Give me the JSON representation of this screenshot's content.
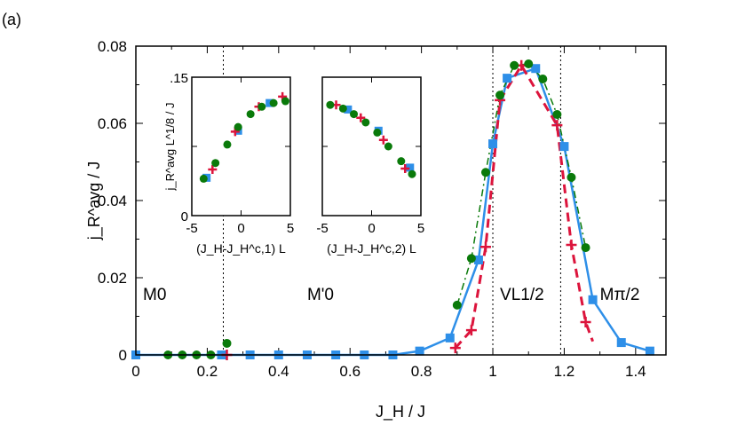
{
  "panel_label": "(a)",
  "chart_data": {
    "type": "scatter",
    "xlabel": "J_H / J",
    "ylabel": "j_R^avg / J",
    "xlim": [
      0,
      1.485
    ],
    "ylim": [
      0,
      0.08
    ],
    "xticks": [
      "0",
      "0.2",
      "0.4",
      "0.6",
      "0.8",
      "1",
      "1.2",
      "1.4"
    ],
    "yticks": [
      "0",
      "0.02",
      "0.04",
      "0.06",
      "0.08"
    ],
    "vlines": [
      0.245,
      1.0,
      1.19
    ],
    "region_labels": [
      {
        "text": "M0",
        "x": 0.02
      },
      {
        "text": "M'0",
        "x": 0.48
      },
      {
        "text": "VL1/2",
        "x": 1.02
      },
      {
        "text": "Mπ/2",
        "x": 1.3
      }
    ],
    "colors": {
      "blue": "#2e8fe8",
      "red": "#dc143c",
      "green": "#0a7a0a"
    },
    "series": [
      {
        "marker": "square",
        "color": "#2e8fe8",
        "line": "solid",
        "x": [
          0,
          0.24,
          0.32,
          0.4,
          0.48,
          0.56,
          0.64,
          0.72,
          0.795,
          0.88,
          0.96,
          1.0,
          1.04,
          1.12,
          1.2,
          1.28,
          1.36,
          1.44
        ],
        "y": [
          0,
          0,
          0,
          0,
          0,
          0,
          0,
          0,
          0.001,
          0.0044,
          0.0246,
          0.0547,
          0.0717,
          0.0742,
          0.054,
          0.0143,
          0.0032,
          0.001
        ]
      },
      {
        "marker": "plus",
        "color": "#dc143c",
        "line": "dashed",
        "x": [
          0.255,
          0.895,
          0.94,
          0.98,
          1.02,
          1.08,
          1.18,
          1.22,
          1.26
        ],
        "y": [
          0,
          0.0018,
          0.0064,
          0.028,
          0.066,
          0.075,
          0.0595,
          0.0285,
          0.0085
        ]
      },
      {
        "marker": "circle",
        "color": "#0a7a0a",
        "line": "dashdot",
        "x": [
          0.09,
          0.13,
          0.17,
          0.21,
          0.255,
          0.9,
          0.94,
          0.98,
          1.02,
          1.06,
          1.1,
          1.14,
          1.18,
          1.22,
          1.26
        ],
        "y": [
          0,
          0,
          0,
          0,
          0.003,
          0.0129,
          0.025,
          0.0473,
          0.0673,
          0.075,
          0.0754,
          0.0715,
          0.0623,
          0.046,
          0.0278
        ]
      }
    ],
    "insets": [
      {
        "xlabel": "(J_H-J_H^c,1) L",
        "ylabel": "j_R^avg L^1/8 / J",
        "xlim": [
          -5,
          5
        ],
        "ylim": [
          0,
          0.15
        ],
        "xticks": [
          "-5",
          "0",
          "5"
        ],
        "yticks": [
          "0",
          "0.15"
        ],
        "series": [
          {
            "marker": "square",
            "color": "#2e8fe8",
            "x": [
              -3.5,
              -0.3,
              2.9
            ],
            "y": [
              0.041,
              0.092,
              0.122
            ]
          },
          {
            "marker": "plus",
            "color": "#dc143c",
            "x": [
              -2.9,
              -0.6,
              1.8,
              4.2
            ],
            "y": [
              0.05,
              0.091,
              0.118,
              0.129
            ]
          },
          {
            "marker": "circle",
            "color": "#0a7a0a",
            "x": [
              -3.8,
              -2.6,
              -1.4,
              -0.3,
              0.96,
              2.1,
              3.3,
              4.5
            ],
            "y": [
              0.04,
              0.057,
              0.077,
              0.096,
              0.11,
              0.118,
              0.122,
              0.124
            ]
          }
        ]
      },
      {
        "xlabel": "(J_H-J_H^c,2) L",
        "xlim": [
          -5,
          5
        ],
        "ylim": [
          0,
          0.15
        ],
        "xticks": [
          "-5",
          "0",
          "5"
        ],
        "series": [
          {
            "marker": "square",
            "color": "#2e8fe8",
            "x": [
              -2.4,
              0.7,
              3.9
            ],
            "y": [
              0.115,
              0.092,
              0.052
            ]
          },
          {
            "marker": "plus",
            "color": "#dc143c",
            "x": [
              -3.6,
              -1.1,
              1.2,
              3.4
            ],
            "y": [
              0.12,
              0.106,
              0.082,
              0.051
            ]
          },
          {
            "marker": "circle",
            "color": "#0a7a0a",
            "x": [
              -4.2,
              -2.9,
              -1.8,
              -0.6,
              0.57,
              1.7,
              3.0,
              4.1
            ],
            "y": [
              0.12,
              0.116,
              0.11,
              0.101,
              0.09,
              0.075,
              0.059,
              0.045
            ]
          }
        ]
      }
    ]
  }
}
